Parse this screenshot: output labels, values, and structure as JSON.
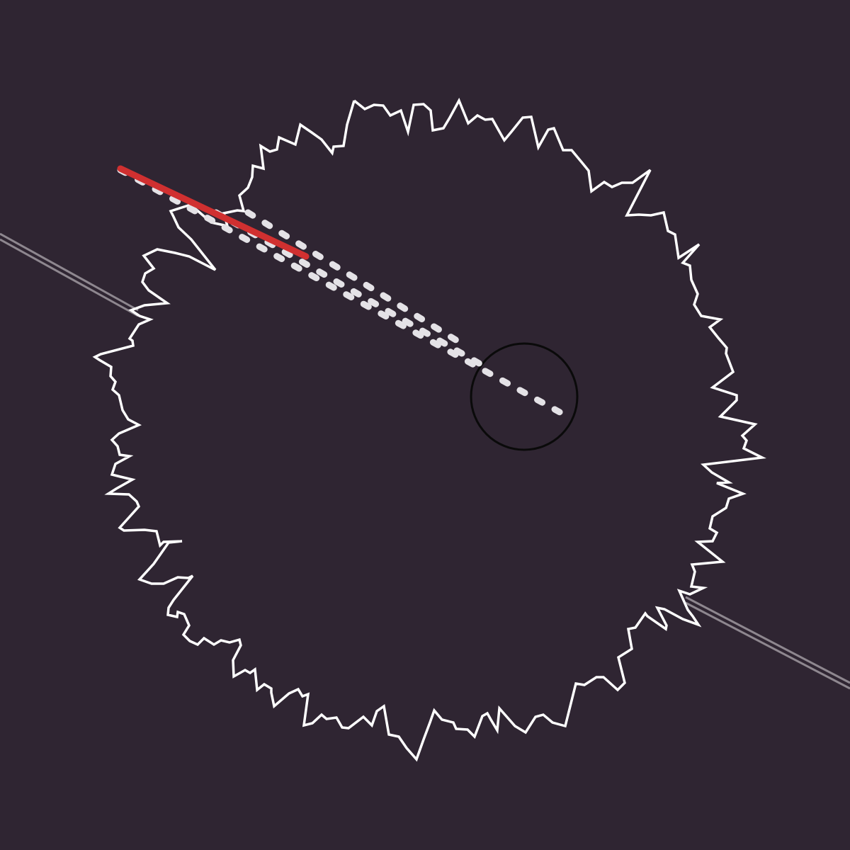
{
  "colors": {
    "background": "#2f2532",
    "asteroid_outline": "#ffffff",
    "trajectory": "#e4e2e6",
    "shot": "#d03030",
    "target_ring": "#0a0a0a",
    "track": "#8e878f"
  }
}
